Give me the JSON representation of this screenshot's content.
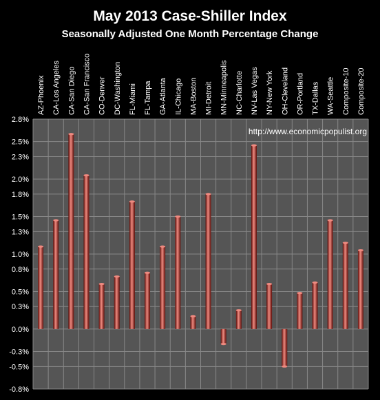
{
  "chart_data": {
    "type": "bar",
    "title": "May 2013 Case-Shiller Index",
    "subtitle": "Seasonally Adjusted One Month Percentage Change",
    "watermark": "http://www.economicpopulist.org",
    "categories": [
      "AZ-Phoenix",
      "CA-Los Angeles",
      "CA-San Diego",
      "CA-San Francisco",
      "CO-Denver",
      "DC-Washington",
      "FL-Miami",
      "FL-Tampa",
      "GA-Atlanta",
      "IL-Chicago",
      "MA-Boston",
      "MI-Detroit",
      "MN-Minneapolis",
      "NC-Charlotte",
      "NV-Las Vegas",
      "NY-New York",
      "OH-Cleveland",
      "OR-Portland",
      "TX-Dallas",
      "WA-Seattle",
      "Composite-10",
      "Composite-20"
    ],
    "values": [
      1.1,
      1.45,
      2.6,
      2.05,
      0.6,
      0.7,
      1.7,
      0.75,
      1.1,
      1.5,
      0.17,
      1.8,
      -0.2,
      0.25,
      2.45,
      0.6,
      -0.5,
      0.48,
      0.62,
      1.45,
      1.15,
      1.05
    ],
    "ylim": [
      -0.8,
      2.8
    ],
    "yticks": [
      -0.8,
      -0.5,
      -0.3,
      0.0,
      0.3,
      0.5,
      0.8,
      1.0,
      1.3,
      1.5,
      1.8,
      2.0,
      2.3,
      2.5,
      2.8
    ],
    "ytick_labels": [
      "-0.8%",
      "-0.5%",
      "-0.3%",
      "0.0%",
      "0.3%",
      "0.5%",
      "0.8%",
      "1.0%",
      "1.3%",
      "1.5%",
      "1.8%",
      "2.0%",
      "2.3%",
      "2.5%",
      "2.8%"
    ],
    "grid": true,
    "colors": {
      "background": "#000000",
      "plot_background": "#555555",
      "grid": "#888888",
      "bar": "#c0302a",
      "bar_highlight": "#ef8a80",
      "bar_shadow": "#5a0c08",
      "text": "#ffffff"
    }
  }
}
